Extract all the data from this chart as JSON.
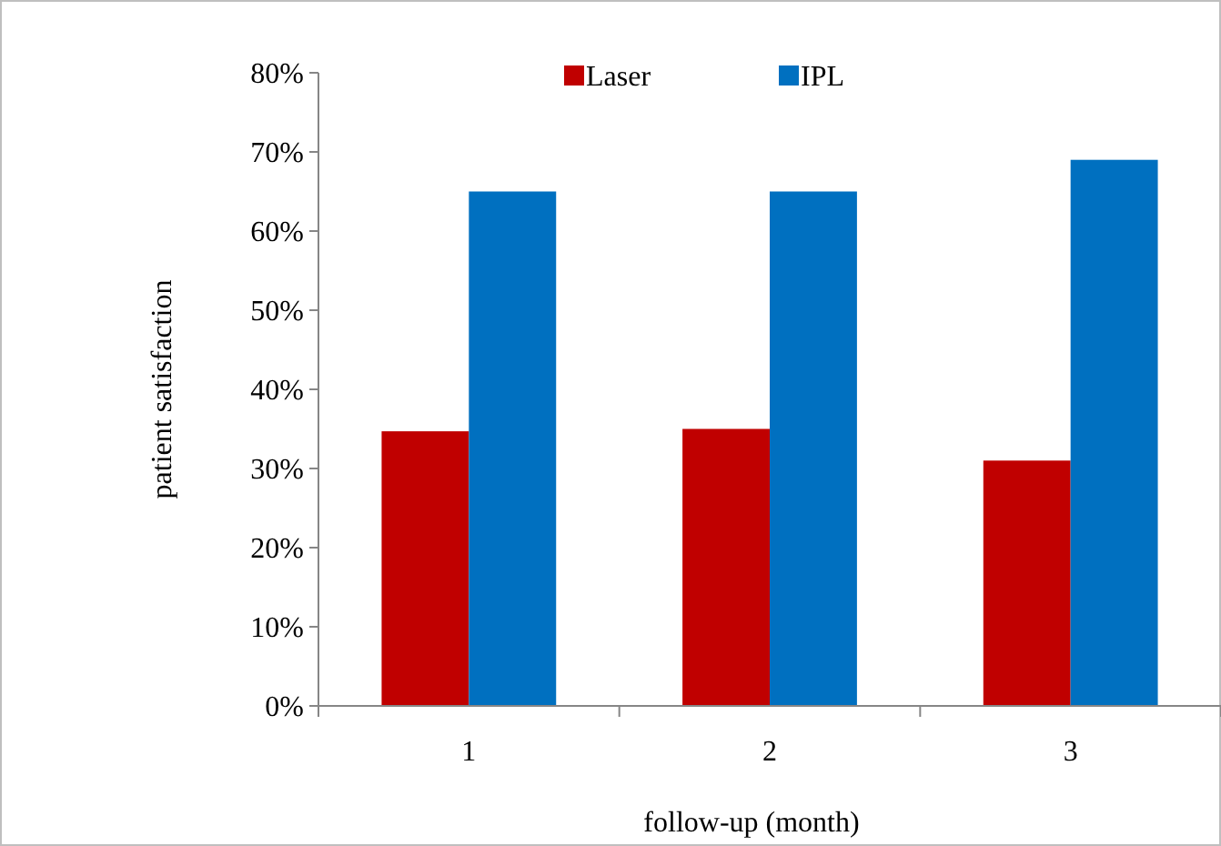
{
  "chart_data": {
    "type": "bar",
    "xlabel": "follow-up (month)",
    "ylabel": "patient satisfaction",
    "categories": [
      "1",
      "2",
      "3"
    ],
    "series": [
      {
        "name": "Laser",
        "color": "#c00000",
        "values": [
          34.7,
          35,
          31
        ]
      },
      {
        "name": "IPL",
        "color": "#0070c0",
        "values": [
          65,
          65,
          69
        ]
      }
    ],
    "ylim": [
      0,
      80
    ],
    "yticks": [
      {
        "value": 0,
        "label": "0%"
      },
      {
        "value": 10,
        "label": "10%"
      },
      {
        "value": 20,
        "label": "20%"
      },
      {
        "value": 30,
        "label": "30%"
      },
      {
        "value": 40,
        "label": "40%"
      },
      {
        "value": 50,
        "label": "50%"
      },
      {
        "value": 60,
        "label": "60%"
      },
      {
        "value": 70,
        "label": "70%"
      },
      {
        "value": 80,
        "label": "80%"
      }
    ],
    "grid": false,
    "legend": "top"
  }
}
